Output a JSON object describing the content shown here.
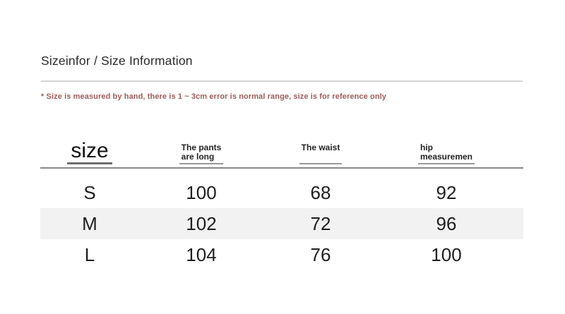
{
  "header": {
    "title": "Sizeinfor / Size Information"
  },
  "note": {
    "text": "* Size is measured by hand, there is 1 ~ 3cm error is normal range, size is for reference only"
  },
  "size_table": {
    "head": {
      "size_label": "size",
      "columns": [
        {
          "line1": "The pants",
          "line2": "are long"
        },
        {
          "line1": "The waist",
          "line2": ""
        },
        {
          "line1": "hip",
          "line2": "measuremen"
        }
      ]
    },
    "rows": [
      {
        "cells": [
          "S",
          "100",
          "68",
          "92"
        ]
      },
      {
        "cells": [
          "M",
          "102",
          "72",
          "96"
        ]
      },
      {
        "cells": [
          "L",
          "104",
          "76",
          "100"
        ]
      }
    ]
  },
  "colors": {
    "title_text": "#2a2a2a",
    "note_text": "#9d5c5c",
    "data_text": "#1e1e1e",
    "divider": "#d5d5d5",
    "header_rule": "#8a8a8a",
    "column_underline": "#9a9a9a",
    "alt_row_bg": "#f2f2f2",
    "page_bg": "#ffffff"
  },
  "chart_data": {
    "type": "table",
    "title": "Sizeinfor / Size Information",
    "note": "* Size is measured by hand, there is 1 ~ 3cm error is normal range, size is for reference only",
    "columns": [
      "size",
      "The pants are long",
      "The waist",
      "hip measuremen"
    ],
    "rows": [
      [
        "S",
        100,
        68,
        92
      ],
      [
        "M",
        102,
        72,
        96
      ],
      [
        "L",
        104,
        76,
        100
      ]
    ],
    "layout_hints": {
      "alternating_row_shading": true,
      "header_underlines": true,
      "grid": "horizontal header rule only"
    }
  }
}
